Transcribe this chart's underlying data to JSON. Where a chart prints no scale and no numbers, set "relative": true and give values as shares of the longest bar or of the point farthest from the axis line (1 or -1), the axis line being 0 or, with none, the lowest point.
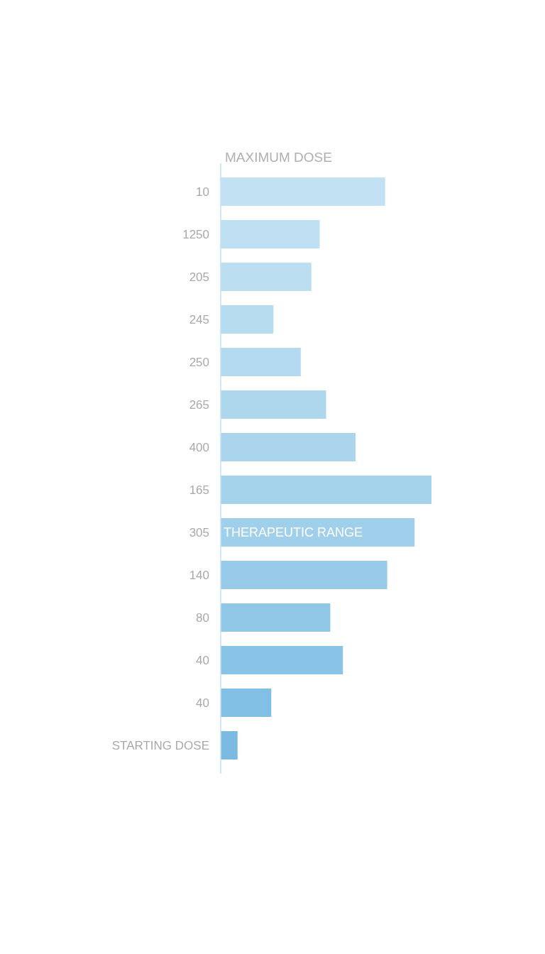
{
  "chart_data": {
    "type": "bar",
    "orientation": "horizontal",
    "relative": true,
    "ylabel": "MAXIMUM DOSE",
    "categories": [
      "10",
      "1250",
      "205",
      "245",
      "250",
      "265",
      "400",
      "165",
      "305",
      "140",
      "80",
      "40",
      "40",
      "STARTING DOSE"
    ],
    "values": [
      0.78,
      0.47,
      0.43,
      0.25,
      0.38,
      0.5,
      0.64,
      1,
      0.92,
      0.79,
      0.52,
      0.58,
      0.24,
      0.08
    ],
    "colors": [
      "#c2e2f3",
      "#bfe0f2",
      "#bbdef1",
      "#b7dcf0",
      "#b3daef",
      "#aed7ee",
      "#aad5ed",
      "#a6d3ec",
      "#a0cfeb",
      "#98cbe9",
      "#90c7e7",
      "#89c3e6",
      "#82bfe4",
      "#7bbbe2"
    ],
    "annotations": [
      {
        "text": "THERAPEUTIC RANGE",
        "x": 0,
        "y": "305"
      }
    ]
  }
}
